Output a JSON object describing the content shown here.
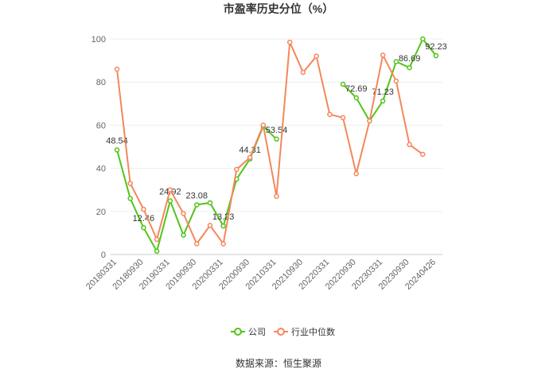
{
  "chart_data": {
    "type": "line",
    "title": "市盈率历史分位（%）",
    "source": "数据来源：恒生聚源",
    "categories": [
      "20180331",
      null,
      "20180930",
      null,
      "20190331",
      null,
      "20190930",
      null,
      "20200331",
      null,
      "20200930",
      null,
      "20210331",
      null,
      "20210930",
      null,
      "20220331",
      null,
      "20220930",
      null,
      "20230331",
      null,
      "20230930",
      null,
      "20240426"
    ],
    "series": [
      {
        "name": "公司",
        "color": "#52c41a",
        "values": [
          48.54,
          26,
          12.46,
          1.5,
          24.92,
          9,
          23.08,
          24,
          13.23,
          35,
          44.31,
          59.5,
          53.54,
          null,
          null,
          null,
          null,
          79,
          72.69,
          62,
          71.23,
          89.5,
          86.69,
          100,
          92.23
        ],
        "value_labels": [
          "48.54",
          null,
          "12.46",
          null,
          "24.92",
          null,
          "23.08",
          null,
          "13.23",
          null,
          "44.31",
          null,
          "53.54",
          null,
          null,
          null,
          null,
          null,
          "72.69",
          null,
          "71.23",
          null,
          "86.69",
          null,
          "92.23"
        ]
      },
      {
        "name": "行业中位数",
        "color": "#f4875c",
        "values": [
          86,
          33,
          21,
          7,
          30,
          19,
          5,
          13.5,
          5,
          39.5,
          45,
          60,
          27,
          98.5,
          84.5,
          92,
          65,
          63.5,
          37.5,
          62,
          92.5,
          80.5,
          51,
          46.5,
          null
        ]
      }
    ],
    "ylim": [
      0,
      100
    ],
    "yticks": [
      0,
      20,
      40,
      60,
      80,
      100
    ],
    "grid": true
  }
}
